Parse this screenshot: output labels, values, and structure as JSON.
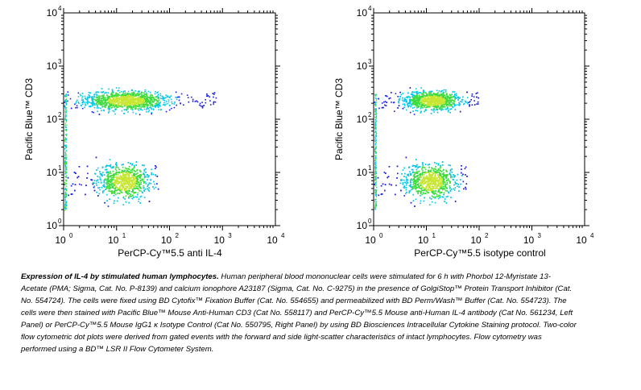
{
  "chart_data": [
    {
      "type": "scatter",
      "subtype": "flow-cytometry-density-dot-plot",
      "panel": "left",
      "xlabel": "PerCP-Cy™5.5 anti IL-4",
      "ylabel": "Pacific Blue™ CD3",
      "xscale": "log",
      "yscale": "log",
      "xlim": [
        1,
        10000
      ],
      "ylim": [
        1,
        10000
      ],
      "xticks": [
        {
          "base": "10",
          "exp": "0"
        },
        {
          "base": "10",
          "exp": "1"
        },
        {
          "base": "10",
          "exp": "2"
        },
        {
          "base": "10",
          "exp": "3"
        },
        {
          "base": "10",
          "exp": "4"
        }
      ],
      "yticks": [
        {
          "base": "10",
          "exp": "0"
        },
        {
          "base": "10",
          "exp": "1"
        },
        {
          "base": "10",
          "exp": "2"
        },
        {
          "base": "10",
          "exp": "3"
        },
        {
          "base": "10",
          "exp": "4"
        }
      ],
      "populations": [
        {
          "population": "CD3+ upper",
          "x_center": 15,
          "y_center": 230,
          "x_extent": [
            1,
            800
          ],
          "y_extent": [
            100,
            400
          ]
        },
        {
          "population": "CD3- lower",
          "x_center": 14,
          "y_center": 7,
          "x_extent": [
            1,
            60
          ],
          "y_extent": [
            2,
            25
          ]
        }
      ],
      "grid": false
    },
    {
      "type": "scatter",
      "subtype": "flow-cytometry-density-dot-plot",
      "panel": "right",
      "xlabel": "PerCP-Cy™5.5 isotype control",
      "ylabel": "Pacific Blue™ CD3",
      "xscale": "log",
      "yscale": "log",
      "xlim": [
        1,
        10000
      ],
      "ylim": [
        1,
        10000
      ],
      "xticks": [
        {
          "base": "10",
          "exp": "0"
        },
        {
          "base": "10",
          "exp": "1"
        },
        {
          "base": "10",
          "exp": "2"
        },
        {
          "base": "10",
          "exp": "3"
        },
        {
          "base": "10",
          "exp": "4"
        }
      ],
      "yticks": [
        {
          "base": "10",
          "exp": "0"
        },
        {
          "base": "10",
          "exp": "1"
        },
        {
          "base": "10",
          "exp": "2"
        },
        {
          "base": "10",
          "exp": "3"
        },
        {
          "base": "10",
          "exp": "4"
        }
      ],
      "populations": [
        {
          "population": "CD3+ upper",
          "x_center": 13,
          "y_center": 230,
          "x_extent": [
            1,
            100
          ],
          "y_extent": [
            100,
            400
          ]
        },
        {
          "population": "CD3- lower",
          "x_center": 12,
          "y_center": 7,
          "x_extent": [
            1,
            60
          ],
          "y_extent": [
            2,
            25
          ]
        }
      ],
      "grid": false
    }
  ],
  "caption": {
    "lead": "Expression of IL-4 by stimulated human lymphocytes.",
    "body": " Human peripheral blood mononuclear cells were stimulated for 6 h with Phorbol 12-Myristate 13-Acetate (PMA; Sigma, Cat. No. P-8139) and calcium ionophore A23187 (Sigma, Cat. No. C-9275) in the presence of GolgiStop™ Protein Transport Inhibitor (Cat. No. 554724). The cells were fixed using BD Cytofix™ Fixation Buffer (Cat. No. 554655) and permeabilized with BD Perm/Wash™ Buffer (Cat. No. 554723). The cells were then stained with Pacific Blue™ Mouse Anti-Human CD3 (Cat No. 558117) and PerCP-Cy™5.5 Mouse anti-Human IL-4 antibody (Cat No. 561234, Left Panel) or PerCP-Cy™5.5 Mouse IgG1 κ Isotype Control (Cat No. 550795, Right Panel) by using BD Biosciences Intracellular Cytokine Staining protocol. Two-color flow cytometric dot plots were derived from gated events with the forward and side light-scatter characteristics of intact lymphocytes. Flow cytometry was performed using a BD™ LSR II Flow Cytometer System."
  },
  "colors": {
    "low_density": "#1a1adf",
    "mid_density": "#00c8e6",
    "high_density": "#3cdc3c",
    "peak_density": "#c8e632"
  }
}
